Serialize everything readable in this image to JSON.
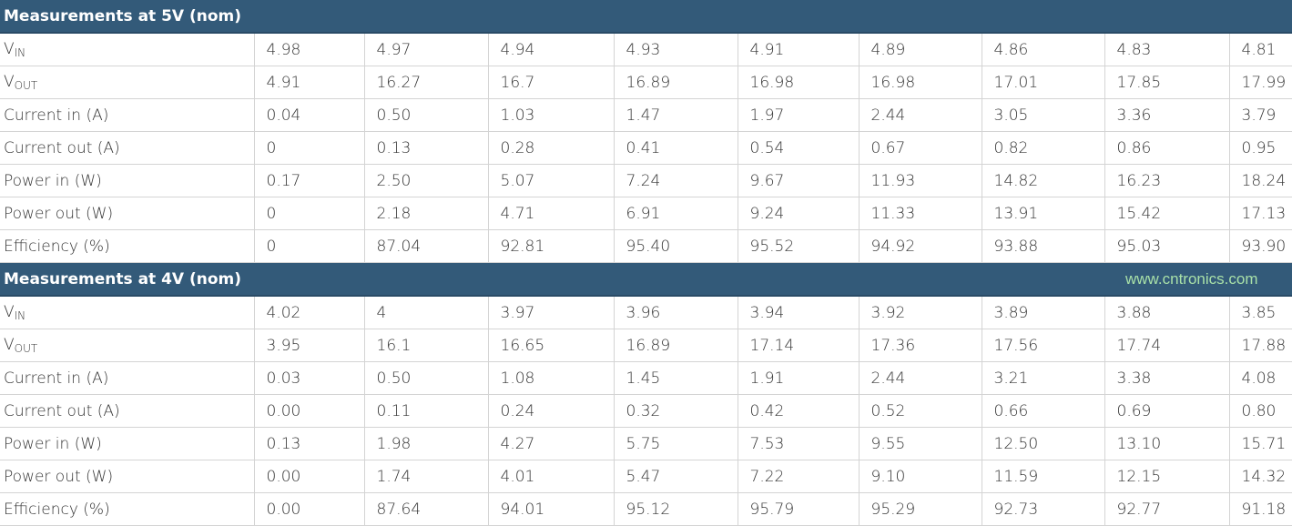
{
  "sections": [
    {
      "title": "Measurements at 5V (nom)",
      "rows": [
        {
          "label": "V",
          "sub": "IN",
          "values": [
            "4.98",
            "4.97",
            "4.94",
            "4.93",
            "4.91",
            "4.89",
            "4.86",
            "4.83",
            "4.81"
          ]
        },
        {
          "label": "V",
          "sub": "OUT",
          "values": [
            "4.91",
            "16.27",
            "16.7",
            "16.89",
            "16.98",
            "16.98",
            "17.01",
            "17.85",
            "17.99"
          ]
        },
        {
          "label": "Current in (A)",
          "values": [
            "0.04",
            "0.50",
            "1.03",
            "1.47",
            "1.97",
            "2.44",
            "3.05",
            "3.36",
            "3.79"
          ]
        },
        {
          "label": "Current out (A)",
          "values": [
            "0",
            "0.13",
            "0.28",
            "0.41",
            "0.54",
            "0.67",
            "0.82",
            "0.86",
            "0.95"
          ]
        },
        {
          "label": "Power in (W)",
          "values": [
            "0.17",
            "2.50",
            "5.07",
            "7.24",
            "9.67",
            "11.93",
            "14.82",
            "16.23",
            "18.24"
          ]
        },
        {
          "label": "Power out (W)",
          "values": [
            "0",
            "2.18",
            "4.71",
            "6.91",
            "9.24",
            "11.33",
            "13.91",
            "15.42",
            "17.13"
          ]
        },
        {
          "label": "Efficiency (%)",
          "values": [
            "0",
            "87.04",
            "92.81",
            "95.40",
            "95.52",
            "94.92",
            "93.88",
            "95.03",
            "93.90"
          ]
        }
      ]
    },
    {
      "title": "Measurements at 4V (nom)",
      "rows": [
        {
          "label": "V",
          "sub": "IN",
          "values": [
            "4.02",
            "4",
            "3.97",
            "3.96",
            "3.94",
            "3.92",
            "3.89",
            "3.88",
            "3.85"
          ]
        },
        {
          "label": "V",
          "sub": "OUT",
          "values": [
            "3.95",
            "16.1",
            "16.65",
            "16.89",
            "17.14",
            "17.36",
            "17.56",
            "17.74",
            "17.88"
          ]
        },
        {
          "label": "Current in (A)",
          "values": [
            "0.03",
            "0.50",
            "1.08",
            "1.45",
            "1.91",
            "2.44",
            "3.21",
            "3.38",
            "4.08"
          ]
        },
        {
          "label": "Current out (A)",
          "values": [
            "0.00",
            "0.11",
            "0.24",
            "0.32",
            "0.42",
            "0.52",
            "0.66",
            "0.69",
            "0.80"
          ]
        },
        {
          "label": "Power in (W)",
          "values": [
            "0.13",
            "1.98",
            "4.27",
            "5.75",
            "7.53",
            "9.55",
            "12.50",
            "13.10",
            "15.71"
          ]
        },
        {
          "label": "Power out (W)",
          "values": [
            "0.00",
            "1.74",
            "4.01",
            "5.47",
            "7.22",
            "9.10",
            "11.59",
            "12.15",
            "14.32"
          ]
        },
        {
          "label": "Efficiency (%)",
          "values": [
            "0.00",
            "87.64",
            "94.01",
            "95.12",
            "95.79",
            "95.29",
            "92.73",
            "92.77",
            "91.18"
          ]
        }
      ]
    }
  ],
  "watermark": "www.cntronics.com",
  "colors": {
    "header_bg": "#335a79",
    "header_text": "#ffffff",
    "grid": "#d4d4d4"
  }
}
